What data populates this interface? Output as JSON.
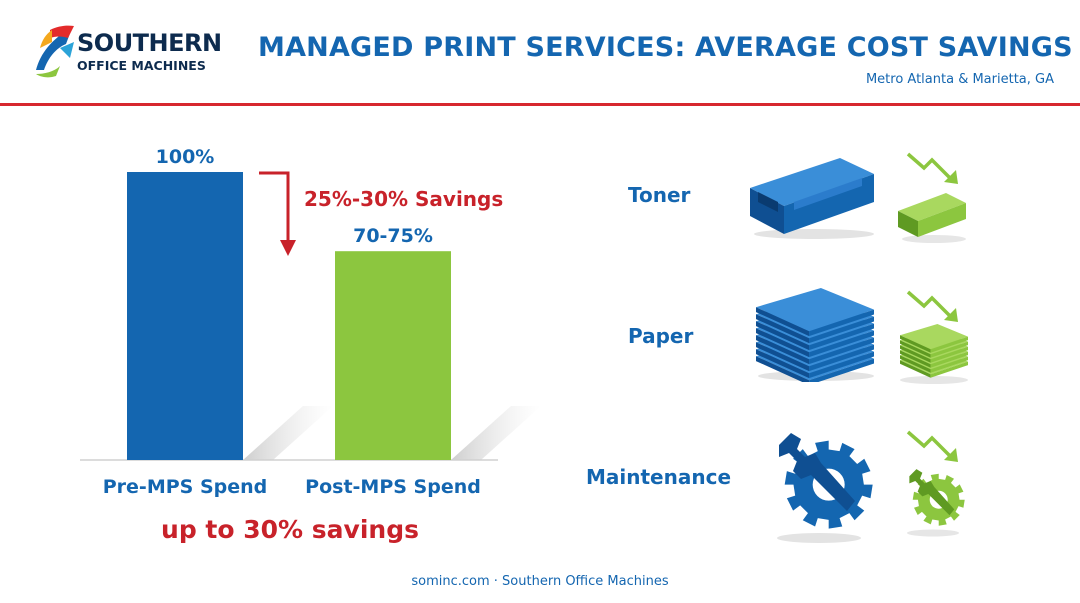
{
  "header": {
    "logo_line1": "SOUTHERN",
    "logo_line2": "OFFICE MACHINES",
    "title": "MANAGED PRINT SERVICES: AVERAGE COST SAVINGS",
    "subtitle": "Metro Atlanta & Marietta, GA",
    "rule_color": "#d7282f"
  },
  "chart_data": {
    "type": "bar",
    "categories": [
      "Pre-MPS Spend",
      "Post-MPS Spend"
    ],
    "values": [
      100,
      72.5
    ],
    "value_labels": [
      "100%",
      "70-75%"
    ],
    "colors": [
      "#1466b0",
      "#8cc63f"
    ],
    "title": "",
    "xlabel": "",
    "ylabel": "",
    "ylim": [
      0,
      100
    ],
    "grid": false,
    "annotation": "25%-30% Savings"
  },
  "summary": "up to 30% savings",
  "categories": [
    {
      "label": "Toner",
      "icon": "toner-cartridge-icon"
    },
    {
      "label": "Paper",
      "icon": "paper-stack-icon"
    },
    {
      "label": "Maintenance",
      "icon": "wrench-gear-icon"
    }
  ],
  "colors": {
    "brand_blue": "#1466b0",
    "savings_green": "#8cc63f",
    "accent_red": "#c8222a"
  },
  "footer": "sominc.com · Southern Office Machines"
}
